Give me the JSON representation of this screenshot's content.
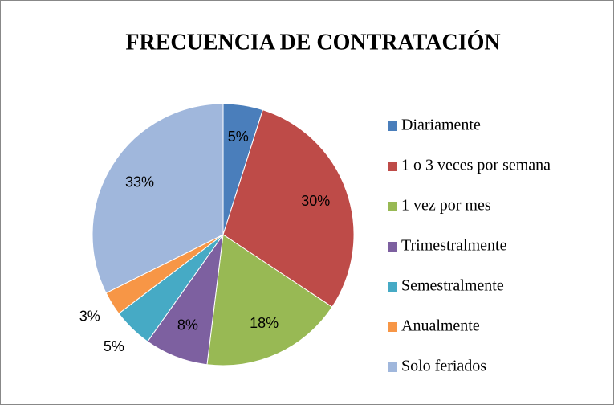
{
  "chart_data": {
    "type": "pie",
    "title": "FRECUENCIA DE CONTRATACIÓN",
    "categories": [
      "Diariamente",
      "1 o 3 veces por semana",
      "1 vez por mes",
      "Trimestralmente",
      "Semestralmente",
      "Anualmente",
      "Solo feriados"
    ],
    "values": [
      5,
      30,
      18,
      8,
      5,
      3,
      33
    ],
    "value_labels": [
      "5%",
      "30%",
      "18%",
      "8%",
      "5%",
      "3%",
      "33%"
    ],
    "colors": [
      "#4a7ebb",
      "#be4b48",
      "#98b954",
      "#7d60a0",
      "#46aac5",
      "#f79646",
      "#a0b7dc"
    ],
    "legend": "right"
  }
}
